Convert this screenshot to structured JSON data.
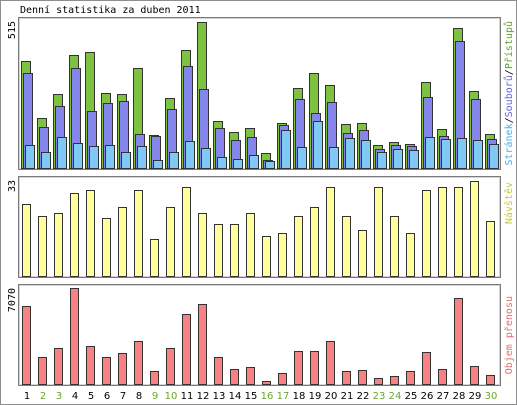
{
  "chart_data": {
    "type": "bar",
    "title": "Denní statistika za duben 2011",
    "categories": [
      "1",
      "2",
      "3",
      "4",
      "5",
      "6",
      "7",
      "8",
      "9",
      "10",
      "11",
      "12",
      "13",
      "14",
      "15",
      "16",
      "17",
      "18",
      "19",
      "20",
      "21",
      "22",
      "23",
      "24",
      "25",
      "26",
      "27",
      "28",
      "29",
      "30"
    ],
    "weekend_flags": [
      false,
      true,
      true,
      false,
      false,
      false,
      false,
      false,
      true,
      true,
      false,
      false,
      false,
      false,
      false,
      true,
      true,
      false,
      false,
      false,
      false,
      false,
      true,
      true,
      false,
      false,
      false,
      false,
      false,
      true
    ],
    "weekend_label_color": "#6aa827",
    "weekday_label_color": "#000000",
    "legend_position": "right",
    "legend_separator": "/",
    "grid": false,
    "panels": [
      {
        "ylim": [
          0,
          515
        ]
      },
      {
        "ylim": [
          0,
          33
        ]
      },
      {
        "ylim": [
          0,
          7070
        ]
      }
    ],
    "series": [
      {
        "name": "Přístupů",
        "panel": 0,
        "color": "#7ec242",
        "label_color": "#5ea52c",
        "values": [
          377,
          176,
          261,
          399,
          409,
          265,
          261,
          353,
          116,
          247,
          416,
          515,
          166,
          127,
          141,
          53,
          159,
          282,
          335,
          293,
          155,
          159,
          81,
          92,
          85,
          303,
          138,
          494,
          272,
          120
        ]
      },
      {
        "name": "Souborů",
        "panel": 0,
        "color": "#8585ec",
        "label_color": "#6565d8",
        "values": [
          335,
          145,
          219,
          353,
          201,
          229,
          236,
          120,
          113,
          208,
          360,
          279,
          141,
          99,
          109,
          28,
          152,
          243,
          194,
          233,
          123,
          134,
          67,
          81,
          78,
          250,
          113,
          448,
          243,
          102
        ]
      },
      {
        "name": "Stránek",
        "panel": 0,
        "color": "#7fc9f4",
        "label_color": "#4faee4",
        "values": [
          81,
          56,
          109,
          88,
          78,
          81,
          56,
          78,
          28,
          56,
          95,
          71,
          39,
          32,
          46,
          25,
          134,
          74,
          166,
          74,
          106,
          99,
          56,
          67,
          64,
          109,
          102,
          106,
          99,
          85
        ]
      },
      {
        "name": "Návštěv",
        "panel": 1,
        "color": "#ffff9c",
        "label_color": "#c9c93e",
        "values": [
          25,
          21,
          22,
          29,
          30,
          20,
          24,
          30,
          13,
          24,
          31,
          22,
          18,
          18,
          22,
          14,
          15,
          21,
          24,
          31,
          21,
          16,
          31,
          21,
          15,
          30,
          31,
          31,
          33,
          19
        ]
      },
      {
        "name": "Objem přenosu",
        "panel": 2,
        "color": "#f98181",
        "label_color": "#ec6a6a",
        "values": [
          5730,
          2010,
          2680,
          7070,
          2830,
          2010,
          2310,
          3130,
          970,
          2680,
          5140,
          5880,
          2010,
          1120,
          1270,
          220,
          820,
          2460,
          2460,
          3130,
          970,
          1040,
          450,
          600,
          970,
          2380,
          1120,
          6330,
          1340,
          670
        ]
      }
    ]
  }
}
